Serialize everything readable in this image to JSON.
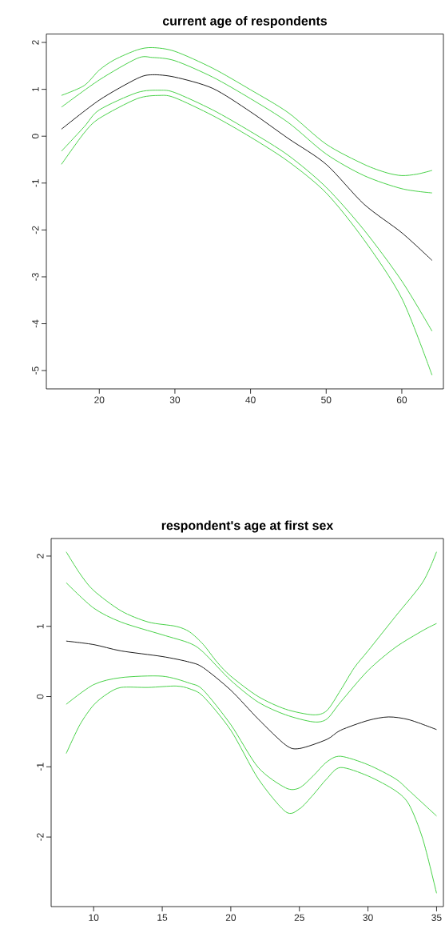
{
  "chart_data": [
    {
      "type": "line",
      "title": "current age of respondents",
      "xlim": [
        13,
        65.5
      ],
      "ylim": [
        -5.39,
        2.18
      ],
      "xticks": [
        20,
        30,
        40,
        50,
        60
      ],
      "yticks": [
        -5,
        -4,
        -3,
        -2,
        -1,
        0,
        1,
        2
      ],
      "grid": false,
      "marker": "none",
      "line_style": "solid",
      "series": [
        {
          "color": "#000000",
          "x": [
            15,
            20,
            25,
            27,
            30,
            35,
            40,
            45,
            50,
            55,
            60,
            64
          ],
          "values": [
            0.15,
            0.77,
            1.23,
            1.31,
            1.26,
            1.02,
            0.52,
            -0.05,
            -0.6,
            -1.45,
            -2.06,
            -2.65
          ]
        },
        {
          "color": "#33cc33",
          "x": [
            15,
            18,
            20,
            22,
            25,
            27,
            30,
            35,
            40,
            45,
            50,
            55,
            58,
            60,
            62,
            64
          ],
          "values": [
            0.87,
            1.08,
            1.41,
            1.63,
            1.84,
            1.89,
            1.81,
            1.45,
            0.99,
            0.5,
            -0.17,
            -0.6,
            -0.78,
            -0.84,
            -0.81,
            -0.73
          ]
        },
        {
          "color": "#33cc33",
          "x": [
            15,
            20,
            25,
            27,
            30,
            35,
            40,
            45,
            50,
            55,
            60,
            64
          ],
          "values": [
            0.62,
            1.2,
            1.66,
            1.68,
            1.61,
            1.26,
            0.8,
            0.29,
            -0.38,
            -0.84,
            -1.12,
            -1.21
          ]
        },
        {
          "color": "#33cc33",
          "x": [
            15,
            18,
            20,
            25,
            28,
            30,
            35,
            40,
            45,
            50,
            55,
            60,
            64
          ],
          "values": [
            -0.32,
            0.2,
            0.56,
            0.93,
            0.98,
            0.93,
            0.56,
            0.1,
            -0.41,
            -1.09,
            -2.0,
            -3.09,
            -4.16
          ]
        },
        {
          "color": "#33cc33",
          "x": [
            15,
            18,
            20,
            25,
            28,
            30,
            35,
            40,
            45,
            50,
            55,
            60,
            64
          ],
          "values": [
            -0.6,
            0.07,
            0.38,
            0.8,
            0.87,
            0.82,
            0.44,
            -0.02,
            -0.54,
            -1.21,
            -2.21,
            -3.46,
            -5.1
          ]
        }
      ]
    },
    {
      "type": "line",
      "title": "respondent's age at first sex",
      "xlim": [
        6.9,
        35.5
      ],
      "ylim": [
        -2.99,
        2.25
      ],
      "xticks": [
        10,
        15,
        20,
        25,
        30,
        35
      ],
      "yticks": [
        -2,
        -1,
        0,
        1,
        2
      ],
      "grid": false,
      "marker": "none",
      "line_style": "solid",
      "series": [
        {
          "color": "#000000",
          "x": [
            8,
            10,
            12,
            15,
            17,
            18,
            20,
            22,
            24,
            25,
            27,
            28,
            30,
            31.5,
            33,
            35
          ],
          "values": [
            0.79,
            0.74,
            0.65,
            0.57,
            0.49,
            0.41,
            0.09,
            -0.32,
            -0.69,
            -0.74,
            -0.61,
            -0.48,
            -0.34,
            -0.29,
            -0.33,
            -0.47
          ]
        },
        {
          "color": "#33cc33",
          "x": [
            8,
            9,
            10,
            12,
            14,
            16,
            17,
            18,
            19,
            20,
            22,
            24,
            26,
            27,
            28,
            29,
            30,
            32,
            34,
            35
          ],
          "values": [
            2.06,
            1.75,
            1.51,
            1.22,
            1.06,
            1.0,
            0.92,
            0.74,
            0.49,
            0.29,
            0.0,
            -0.18,
            -0.26,
            -0.2,
            0.09,
            0.41,
            0.65,
            1.14,
            1.63,
            2.06
          ]
        },
        {
          "color": "#33cc33",
          "x": [
            8,
            10,
            12,
            15,
            17,
            18,
            20,
            22,
            24,
            26,
            27,
            28,
            30,
            32,
            34,
            35
          ],
          "values": [
            1.62,
            1.26,
            1.06,
            0.88,
            0.76,
            0.63,
            0.23,
            -0.08,
            -0.26,
            -0.36,
            -0.32,
            -0.08,
            0.37,
            0.7,
            0.94,
            1.04
          ]
        },
        {
          "color": "#33cc33",
          "x": [
            8,
            10,
            12,
            15,
            17,
            18,
            20,
            22,
            24,
            25,
            26,
            27,
            28,
            30,
            32,
            33,
            35
          ],
          "values": [
            -0.11,
            0.17,
            0.27,
            0.29,
            0.19,
            0.09,
            -0.4,
            -1.01,
            -1.3,
            -1.3,
            -1.13,
            -0.93,
            -0.85,
            -0.97,
            -1.17,
            -1.34,
            -1.7
          ]
        },
        {
          "color": "#33cc33",
          "x": [
            8,
            9,
            10,
            11,
            12,
            14,
            16,
            17,
            18,
            20,
            22,
            24,
            25,
            26,
            27,
            28,
            30,
            32,
            33,
            34,
            35
          ],
          "values": [
            -0.81,
            -0.4,
            -0.12,
            0.04,
            0.13,
            0.13,
            0.15,
            0.11,
            0.0,
            -0.48,
            -1.17,
            -1.64,
            -1.6,
            -1.4,
            -1.17,
            -1.01,
            -1.13,
            -1.34,
            -1.54,
            -2.03,
            -2.8
          ]
        }
      ]
    }
  ]
}
